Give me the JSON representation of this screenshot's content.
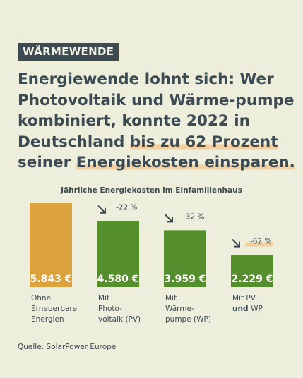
{
  "tag": "WÄRMEWENDE",
  "headline": {
    "part1": "Energiewende lohnt sich: Wer Photovoltaik und Wärme-pumpe kombiniert, konnte 2022 in Deutschland ",
    "highlight1": "bis zu 62 Prozent",
    "part2": " seiner ",
    "highlight2": "Energiekosten einsparen."
  },
  "source": "Quelle: SolarPower Europe",
  "colors": {
    "orange": "#dba23d",
    "green": "#558e2c",
    "highlight": "#f1cfa0",
    "text": "#3c4a52"
  },
  "chart_data": {
    "type": "bar",
    "title": "Jährliche Energiekosten im Einfamilienhaus",
    "unit": "€",
    "ylim": [
      0,
      5843
    ],
    "categories": [
      [
        "Ohne",
        "Erneuerbare",
        "Energien"
      ],
      [
        "Mit",
        "Photo-",
        "voltaik (PV)"
      ],
      [
        "Mit",
        "Wärme-",
        "pumpe (WP)"
      ],
      [
        "Mit PV",
        "und WP"
      ]
    ],
    "values": [
      5843,
      4580,
      3959,
      2229
    ],
    "value_labels": [
      "5.843 €",
      "4.580 €",
      "3.959 €",
      "2.229 €"
    ],
    "changes": [
      "",
      "-22 %",
      "-32 %",
      "-62 %"
    ],
    "bar_colors": [
      "#dba23d",
      "#558e2c",
      "#558e2c",
      "#558e2c"
    ]
  }
}
